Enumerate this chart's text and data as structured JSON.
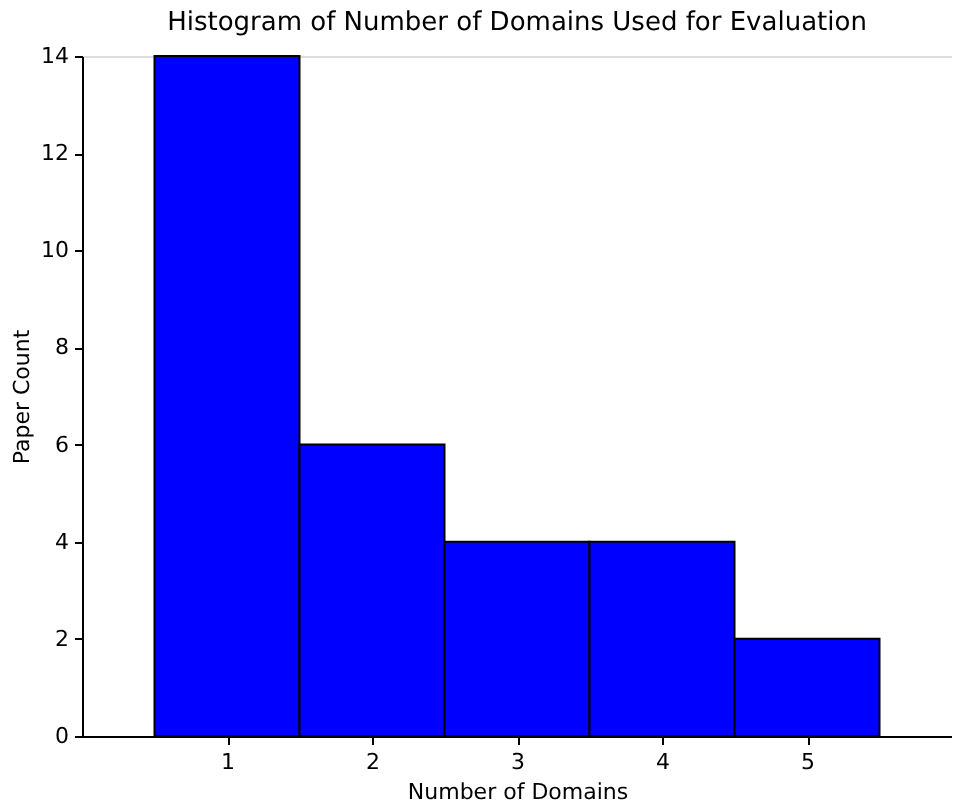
{
  "chart_data": {
    "type": "histogram",
    "title": "Histogram of Number of Domains Used for Evaluation",
    "xlabel": "Number of Domains",
    "ylabel": "Paper Count",
    "bins": [
      0.5,
      1.5,
      2.5,
      3.5,
      4.5,
      5.5
    ],
    "values": [
      14,
      6,
      4,
      4,
      2
    ],
    "color": "#0000ff",
    "xlim": [
      0,
      6
    ],
    "xticks": [
      1,
      2,
      3,
      4,
      5
    ],
    "ylim": [
      0,
      14
    ],
    "yticks": [
      0,
      2,
      4,
      6,
      8,
      10,
      12,
      14
    ],
    "grid": false
  }
}
